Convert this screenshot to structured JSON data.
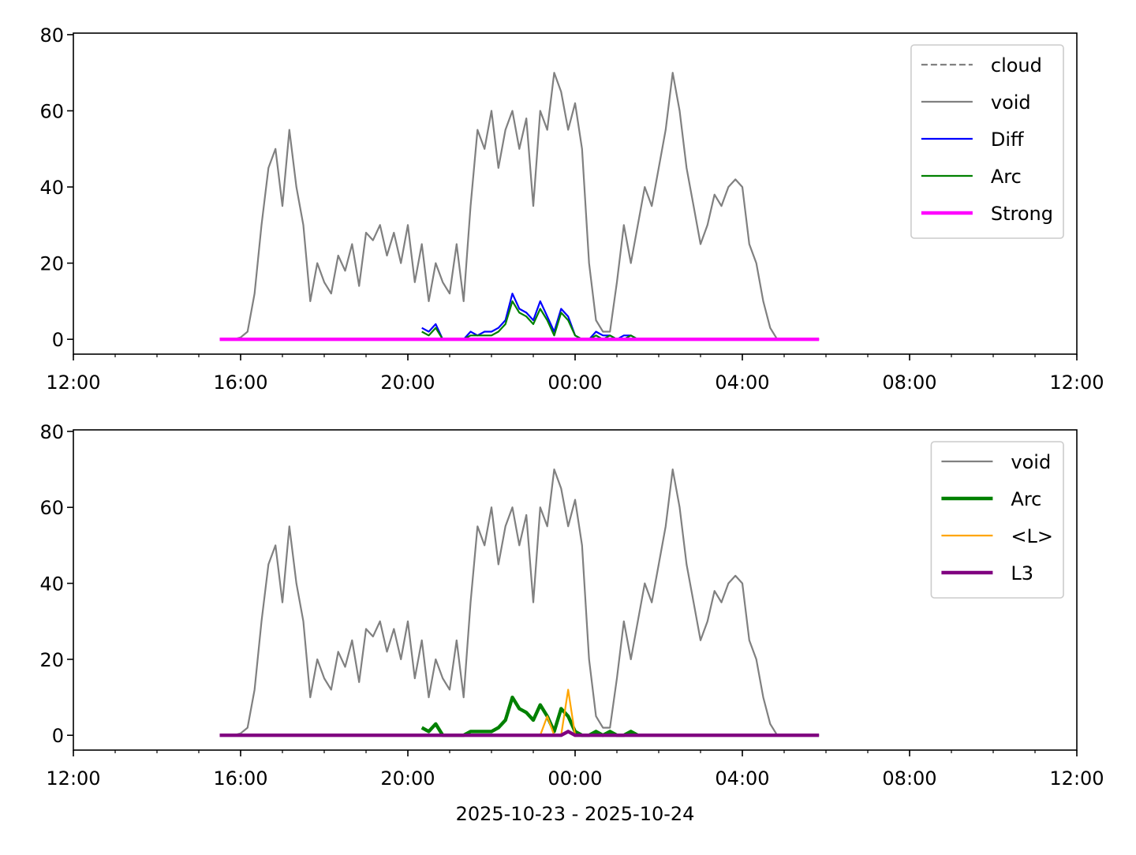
{
  "chart_data": [
    {
      "type": "line",
      "x": [
        "15:30",
        "15:40",
        "15:50",
        "16:00",
        "16:10",
        "16:20",
        "16:30",
        "16:40",
        "16:50",
        "17:00",
        "17:10",
        "17:20",
        "17:30",
        "17:40",
        "17:50",
        "18:00",
        "18:10",
        "18:20",
        "18:30",
        "18:40",
        "18:50",
        "19:00",
        "19:10",
        "19:20",
        "19:30",
        "19:40",
        "19:50",
        "20:00",
        "20:10",
        "20:20",
        "20:30",
        "20:40",
        "20:50",
        "21:00",
        "21:10",
        "21:20",
        "21:30",
        "21:40",
        "21:50",
        "22:00",
        "22:10",
        "22:20",
        "22:30",
        "22:40",
        "22:50",
        "23:00",
        "23:10",
        "23:20",
        "23:30",
        "23:40",
        "23:50",
        "00:00",
        "00:10",
        "00:20",
        "00:30",
        "00:40",
        "00:50",
        "01:00",
        "01:10",
        "01:20",
        "01:30",
        "01:40",
        "01:50",
        "02:00",
        "02:10",
        "02:20",
        "02:30",
        "02:40",
        "02:50",
        "03:00",
        "03:10",
        "03:20",
        "03:30",
        "03:40",
        "03:50",
        "04:00",
        "04:10",
        "04:20",
        "04:30",
        "04:40",
        "04:50",
        "05:00",
        "05:10",
        "05:20",
        "05:30",
        "05:40",
        "05:50"
      ],
      "xlim": [
        "12:00",
        "12:00"
      ],
      "xticks": [
        "12:00",
        "16:00",
        "20:00",
        "00:00",
        "04:00",
        "08:00",
        "12:00"
      ],
      "ylim": [
        -3.9,
        80.4
      ],
      "yticks": [
        0,
        20,
        40,
        60,
        80
      ],
      "legend": "upper right",
      "series": [
        {
          "name": "cloud",
          "color": "#808080",
          "width": 1,
          "dash": true,
          "values": [
            0,
            0,
            0,
            0,
            0,
            0,
            0,
            0,
            0,
            0,
            0,
            0,
            0,
            0,
            0,
            0,
            0,
            0,
            0,
            0,
            0,
            0,
            0,
            0,
            0,
            0,
            0,
            0,
            0,
            0,
            0,
            0,
            0,
            0,
            0,
            0,
            0,
            0,
            0,
            0,
            0,
            0,
            0,
            0,
            0,
            0,
            0,
            0,
            0,
            0,
            0,
            0,
            0,
            0,
            0,
            0,
            0,
            0,
            0,
            0,
            0,
            0,
            0,
            0,
            0,
            0,
            0,
            0,
            0,
            0,
            0,
            0,
            0,
            0,
            0,
            0,
            0,
            0,
            0,
            0,
            0,
            0,
            0,
            0,
            0,
            0,
            0
          ]
        },
        {
          "name": "void",
          "color": "#808080",
          "width": 1,
          "values": [
            0,
            0,
            0,
            0.5,
            2,
            12,
            30,
            45,
            50,
            35,
            55,
            40,
            30,
            10,
            20,
            15,
            12,
            22,
            18,
            25,
            14,
            28,
            26,
            30,
            22,
            28,
            20,
            30,
            15,
            25,
            10,
            20,
            15,
            12,
            25,
            10,
            35,
            55,
            50,
            60,
            45,
            55,
            60,
            50,
            58,
            35,
            60,
            55,
            70,
            65,
            55,
            62,
            50,
            20,
            5,
            2,
            2,
            15,
            30,
            20,
            30,
            40,
            35,
            45,
            55,
            70,
            60,
            45,
            35,
            25,
            30,
            38,
            35,
            40,
            42,
            40,
            25,
            20,
            10,
            3,
            0,
            0,
            0,
            0,
            0,
            0,
            0
          ]
        },
        {
          "name": "Diff",
          "color": "#0000ff",
          "width": 1,
          "values": [
            null,
            null,
            null,
            null,
            null,
            null,
            null,
            null,
            null,
            null,
            null,
            null,
            null,
            null,
            null,
            null,
            null,
            null,
            null,
            null,
            null,
            null,
            null,
            null,
            null,
            null,
            null,
            null,
            null,
            3,
            2,
            4,
            0,
            0,
            0,
            0,
            2,
            1,
            2,
            2,
            3,
            5,
            12,
            8,
            7,
            5,
            10,
            6,
            2,
            8,
            6,
            1,
            0,
            0,
            2,
            1,
            1,
            0,
            1,
            1,
            0,
            null,
            null,
            null,
            null,
            null,
            null,
            null,
            null,
            null,
            null,
            null,
            null,
            null,
            null,
            null,
            null,
            null,
            null,
            null,
            null,
            null,
            null,
            null,
            null,
            null,
            null
          ]
        },
        {
          "name": "Arc",
          "color": "#008000",
          "width": 1,
          "values": [
            null,
            null,
            null,
            null,
            null,
            null,
            null,
            null,
            null,
            null,
            null,
            null,
            null,
            null,
            null,
            null,
            null,
            null,
            null,
            null,
            null,
            null,
            null,
            null,
            null,
            null,
            null,
            null,
            null,
            2,
            1,
            3,
            0,
            0,
            0,
            0,
            1,
            1,
            1,
            1,
            2,
            4,
            10,
            7,
            6,
            4,
            8,
            5,
            1,
            7,
            5,
            1,
            0,
            0,
            1,
            0,
            1,
            0,
            0,
            1,
            0,
            null,
            null,
            null,
            null,
            null,
            null,
            null,
            null,
            null,
            null,
            null,
            null,
            null,
            null,
            null,
            null,
            null,
            null,
            null,
            null,
            null,
            null,
            null,
            null,
            null,
            null
          ]
        },
        {
          "name": "Strong",
          "color": "#ff00ff",
          "width": 2,
          "values": [
            0,
            0,
            0,
            0,
            0,
            0,
            0,
            0,
            0,
            0,
            0,
            0,
            0,
            0,
            0,
            0,
            0,
            0,
            0,
            0,
            0,
            0,
            0,
            0,
            0,
            0,
            0,
            0,
            0,
            0,
            0,
            0,
            0,
            0,
            0,
            0,
            0,
            0,
            0,
            0,
            0,
            0,
            0,
            0,
            0,
            0,
            0,
            0,
            0,
            0,
            0,
            0,
            0,
            0,
            0,
            0,
            0,
            0,
            0,
            0,
            0,
            0,
            0,
            0,
            0,
            0,
            0,
            0,
            0,
            0,
            0,
            0,
            0,
            0,
            0,
            0,
            0,
            0,
            0,
            0,
            0,
            0,
            0,
            0,
            0,
            0,
            0
          ]
        }
      ]
    },
    {
      "type": "line",
      "x": [
        "15:30",
        "15:40",
        "15:50",
        "16:00",
        "16:10",
        "16:20",
        "16:30",
        "16:40",
        "16:50",
        "17:00",
        "17:10",
        "17:20",
        "17:30",
        "17:40",
        "17:50",
        "18:00",
        "18:10",
        "18:20",
        "18:30",
        "18:40",
        "18:50",
        "19:00",
        "19:10",
        "19:20",
        "19:30",
        "19:40",
        "19:50",
        "20:00",
        "20:10",
        "20:20",
        "20:30",
        "20:40",
        "20:50",
        "21:00",
        "21:10",
        "21:20",
        "21:30",
        "21:40",
        "21:50",
        "22:00",
        "22:10",
        "22:20",
        "22:30",
        "22:40",
        "22:50",
        "23:00",
        "23:10",
        "23:20",
        "23:30",
        "23:40",
        "23:50",
        "00:00",
        "00:10",
        "00:20",
        "00:30",
        "00:40",
        "00:50",
        "01:00",
        "01:10",
        "01:20",
        "01:30",
        "01:40",
        "01:50",
        "02:00",
        "02:10",
        "02:20",
        "02:30",
        "02:40",
        "02:50",
        "03:00",
        "03:10",
        "03:20",
        "03:30",
        "03:40",
        "03:50",
        "04:00",
        "04:10",
        "04:20",
        "04:30",
        "04:40",
        "04:50",
        "05:00",
        "05:10",
        "05:20",
        "05:30",
        "05:40",
        "05:50"
      ],
      "xlim": [
        "12:00",
        "12:00"
      ],
      "xticks": [
        "12:00",
        "16:00",
        "20:00",
        "00:00",
        "04:00",
        "08:00",
        "12:00"
      ],
      "ylim": [
        -3.9,
        80.4
      ],
      "yticks": [
        0,
        20,
        40,
        60,
        80
      ],
      "xlabel": "2025-10-23 - 2025-10-24",
      "legend": "upper right",
      "series": [
        {
          "name": "void",
          "color": "#808080",
          "width": 1,
          "values": [
            0,
            0,
            0,
            0.5,
            2,
            12,
            30,
            45,
            50,
            35,
            55,
            40,
            30,
            10,
            20,
            15,
            12,
            22,
            18,
            25,
            14,
            28,
            26,
            30,
            22,
            28,
            20,
            30,
            15,
            25,
            10,
            20,
            15,
            12,
            25,
            10,
            35,
            55,
            50,
            60,
            45,
            55,
            60,
            50,
            58,
            35,
            60,
            55,
            70,
            65,
            55,
            62,
            50,
            20,
            5,
            2,
            2,
            15,
            30,
            20,
            30,
            40,
            35,
            45,
            55,
            70,
            60,
            45,
            35,
            25,
            30,
            38,
            35,
            40,
            42,
            40,
            25,
            20,
            10,
            3,
            0,
            0,
            0,
            0,
            0,
            0,
            0
          ]
        },
        {
          "name": "Arc",
          "color": "#008000",
          "width": 2,
          "values": [
            null,
            null,
            null,
            null,
            null,
            null,
            null,
            null,
            null,
            null,
            null,
            null,
            null,
            null,
            null,
            null,
            null,
            null,
            null,
            null,
            null,
            null,
            null,
            null,
            null,
            null,
            null,
            null,
            null,
            2,
            1,
            3,
            0,
            0,
            0,
            0,
            1,
            1,
            1,
            1,
            2,
            4,
            10,
            7,
            6,
            4,
            8,
            5,
            1,
            7,
            5,
            1,
            0,
            0,
            1,
            0,
            1,
            0,
            0,
            1,
            0,
            null,
            null,
            null,
            null,
            null,
            null,
            null,
            null,
            null,
            null,
            null,
            null,
            null,
            null,
            null,
            null,
            null,
            null,
            null,
            null,
            null,
            null,
            null,
            null,
            null,
            null
          ]
        },
        {
          "name": "<L>",
          "color": "#ffa500",
          "width": 1,
          "values": [
            null,
            null,
            null,
            null,
            null,
            null,
            null,
            null,
            null,
            null,
            null,
            null,
            null,
            null,
            null,
            null,
            null,
            null,
            null,
            null,
            null,
            null,
            null,
            null,
            null,
            null,
            null,
            null,
            null,
            0,
            0,
            0,
            0,
            0,
            0,
            0,
            0,
            0,
            0,
            0,
            0,
            0,
            0,
            0,
            0,
            0,
            0,
            5,
            0,
            0,
            12,
            0,
            0,
            0,
            0,
            0,
            0,
            0,
            0,
            0,
            0,
            null,
            null,
            null,
            null,
            null,
            null,
            null,
            null,
            null,
            null,
            null,
            null,
            null,
            null,
            null,
            null,
            null,
            null,
            null,
            null,
            null,
            null,
            null,
            null,
            null,
            null
          ]
        },
        {
          "name": "L3",
          "color": "#800080",
          "width": 2,
          "values": [
            0,
            0,
            0,
            0,
            0,
            0,
            0,
            0,
            0,
            0,
            0,
            0,
            0,
            0,
            0,
            0,
            0,
            0,
            0,
            0,
            0,
            0,
            0,
            0,
            0,
            0,
            0,
            0,
            0,
            0,
            0,
            0,
            0,
            0,
            0,
            0,
            0,
            0,
            0,
            0,
            0,
            0,
            0,
            0,
            0,
            0,
            0,
            0,
            0,
            0,
            1,
            0,
            0,
            0,
            0,
            0,
            0,
            0,
            0,
            0,
            0,
            0,
            0,
            0,
            0,
            0,
            0,
            0,
            0,
            0,
            0,
            0,
            0,
            0,
            0,
            0,
            0,
            0,
            0,
            0,
            0,
            0,
            0,
            0,
            0,
            0,
            0
          ]
        }
      ]
    }
  ]
}
